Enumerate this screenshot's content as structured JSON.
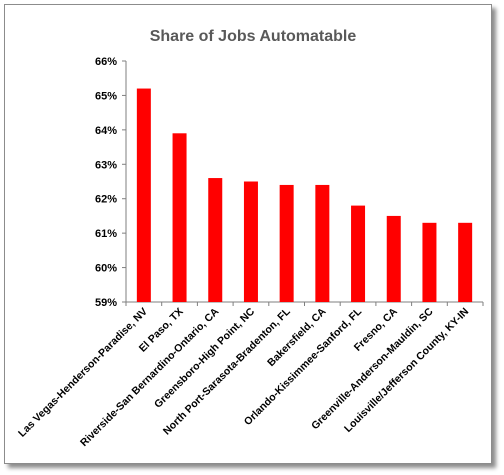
{
  "chart_data": {
    "type": "bar",
    "title": "Share of Jobs Automatable",
    "xlabel": "",
    "ylabel": "",
    "categories": [
      "Las Vegas-Henderson-Paradise, NV",
      "El Paso, TX",
      "Riverside-San Bernardino-Ontario, CA",
      "Greensboro-High Point, NC",
      "North Port-Sarasota-Bradenton, FL",
      "Bakersfield, CA",
      "Orlando-Kissimmee-Sanford, FL",
      "Fresno, CA",
      "Greenville-Anderson-Mauldin, SC",
      "Louisville/Jefferson County, KY-IN"
    ],
    "values": [
      65.2,
      63.9,
      62.6,
      62.5,
      62.4,
      62.4,
      61.8,
      61.5,
      61.3,
      61.3
    ],
    "ylim": [
      59,
      66
    ],
    "yticks": [
      "59%",
      "60%",
      "61%",
      "62%",
      "63%",
      "64%",
      "65%",
      "66%"
    ],
    "grid": false,
    "legend": "none",
    "bar_color": "#ff0000",
    "axis_color": "#7f7f7f"
  }
}
